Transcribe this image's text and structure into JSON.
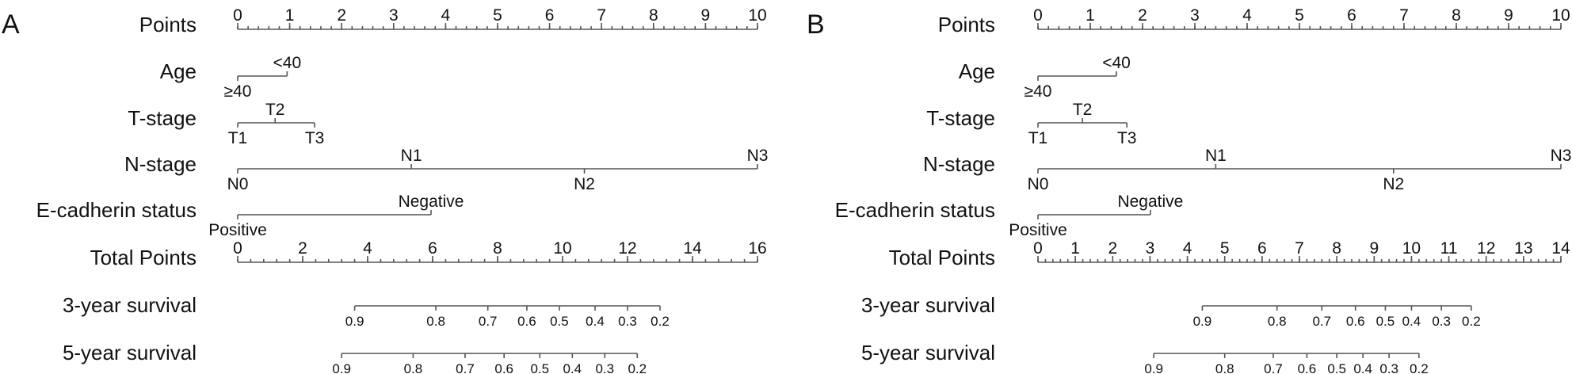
{
  "chart_data": [
    {
      "type": "nomogram",
      "panel_label": "A",
      "rows": [
        {
          "label": "Points",
          "kind": "points_scale",
          "range": [
            0,
            10
          ],
          "labeled_ticks": [
            0,
            1,
            2,
            3,
            4,
            5,
            6,
            7,
            8,
            9,
            10
          ],
          "minor_step": 0.2
        },
        {
          "label": "Age",
          "kind": "categorical",
          "levels": [
            {
              "label": "≥40",
              "points": 0,
              "side": "below"
            },
            {
              "label": "<40",
              "points": 0.95,
              "side": "above"
            }
          ]
        },
        {
          "label": "T-stage",
          "kind": "categorical",
          "levels": [
            {
              "label": "T1",
              "points": 0,
              "side": "below"
            },
            {
              "label": "T2",
              "points": 0.72,
              "side": "above"
            },
            {
              "label": "T3",
              "points": 1.48,
              "side": "below"
            }
          ]
        },
        {
          "label": "N-stage",
          "kind": "categorical",
          "levels": [
            {
              "label": "N0",
              "points": 0,
              "side": "below"
            },
            {
              "label": "N1",
              "points": 3.34,
              "side": "above"
            },
            {
              "label": "N2",
              "points": 6.67,
              "side": "below"
            },
            {
              "label": "N3",
              "points": 10,
              "side": "above"
            }
          ]
        },
        {
          "label": "E-cadherin status",
          "kind": "categorical",
          "levels": [
            {
              "label": "Positive",
              "points": 0,
              "side": "below"
            },
            {
              "label": "Negative",
              "points": 3.72,
              "side": "above"
            }
          ]
        },
        {
          "label": "Total Points",
          "kind": "points_scale",
          "range": [
            0,
            16
          ],
          "labeled_ticks": [
            0,
            2,
            4,
            6,
            8,
            10,
            12,
            14,
            16
          ],
          "minor_step": 0.4
        },
        {
          "label": "3-year survival",
          "kind": "probability_scale",
          "ticks": [
            {
              "label": "0.9",
              "total_points": 3.6
            },
            {
              "label": "0.8",
              "total_points": 6.1
            },
            {
              "label": "0.7",
              "total_points": 7.7
            },
            {
              "label": "0.6",
              "total_points": 8.9
            },
            {
              "label": "0.5",
              "total_points": 9.9
            },
            {
              "label": "0.4",
              "total_points": 11.0
            },
            {
              "label": "0.3",
              "total_points": 12.0
            },
            {
              "label": "0.2",
              "total_points": 13.0
            }
          ]
        },
        {
          "label": "5-year survival",
          "kind": "probability_scale",
          "ticks": [
            {
              "label": "0.9",
              "total_points": 3.2
            },
            {
              "label": "0.8",
              "total_points": 5.4
            },
            {
              "label": "0.7",
              "total_points": 7.0
            },
            {
              "label": "0.6",
              "total_points": 8.2
            },
            {
              "label": "0.5",
              "total_points": 9.3
            },
            {
              "label": "0.4",
              "total_points": 10.3
            },
            {
              "label": "0.3",
              "total_points": 11.3
            },
            {
              "label": "0.2",
              "total_points": 12.3
            }
          ]
        }
      ]
    },
    {
      "type": "nomogram",
      "panel_label": "B",
      "rows": [
        {
          "label": "Points",
          "kind": "points_scale",
          "range": [
            0,
            10
          ],
          "labeled_ticks": [
            0,
            1,
            2,
            3,
            4,
            5,
            6,
            7,
            8,
            9,
            10
          ],
          "minor_step": 0.2
        },
        {
          "label": "Age",
          "kind": "categorical",
          "levels": [
            {
              "label": "≥40",
              "points": 0,
              "side": "below"
            },
            {
              "label": "<40",
              "points": 1.5,
              "side": "above"
            }
          ]
        },
        {
          "label": "T-stage",
          "kind": "categorical",
          "levels": [
            {
              "label": "T1",
              "points": 0,
              "side": "below"
            },
            {
              "label": "T2",
              "points": 0.85,
              "side": "above"
            },
            {
              "label": "T3",
              "points": 1.7,
              "side": "below"
            }
          ]
        },
        {
          "label": "N-stage",
          "kind": "categorical",
          "levels": [
            {
              "label": "N0",
              "points": 0,
              "side": "below"
            },
            {
              "label": "N1",
              "points": 3.4,
              "side": "above"
            },
            {
              "label": "N2",
              "points": 6.8,
              "side": "below"
            },
            {
              "label": "N3",
              "points": 10,
              "side": "above"
            }
          ]
        },
        {
          "label": "E-cadherin status",
          "kind": "categorical",
          "levels": [
            {
              "label": "Positive",
              "points": 0,
              "side": "below"
            },
            {
              "label": "Negative",
              "points": 2.15,
              "side": "above"
            }
          ]
        },
        {
          "label": "Total Points",
          "kind": "points_scale",
          "range": [
            0,
            14
          ],
          "labeled_ticks": [
            0,
            1,
            2,
            3,
            4,
            5,
            6,
            7,
            8,
            9,
            10,
            11,
            12,
            13,
            14
          ],
          "minor_step": 0.2
        },
        {
          "label": "3-year survival",
          "kind": "probability_scale",
          "ticks": [
            {
              "label": "0.9",
              "total_points": 4.4
            },
            {
              "label": "0.8",
              "total_points": 6.4
            },
            {
              "label": "0.7",
              "total_points": 7.6
            },
            {
              "label": "0.6",
              "total_points": 8.5
            },
            {
              "label": "0.5",
              "total_points": 9.3
            },
            {
              "label": "0.4",
              "total_points": 10.0
            },
            {
              "label": "0.3",
              "total_points": 10.8
            },
            {
              "label": "0.2",
              "total_points": 11.6
            }
          ]
        },
        {
          "label": "5-year survival",
          "kind": "probability_scale",
          "ticks": [
            {
              "label": "0.9",
              "total_points": 3.1
            },
            {
              "label": "0.8",
              "total_points": 5.0
            },
            {
              "label": "0.7",
              "total_points": 6.3
            },
            {
              "label": "0.6",
              "total_points": 7.2
            },
            {
              "label": "0.5",
              "total_points": 8.0
            },
            {
              "label": "0.4",
              "total_points": 8.7
            },
            {
              "label": "0.3",
              "total_points": 9.4
            },
            {
              "label": "0.2",
              "total_points": 10.2
            }
          ]
        }
      ]
    }
  ]
}
